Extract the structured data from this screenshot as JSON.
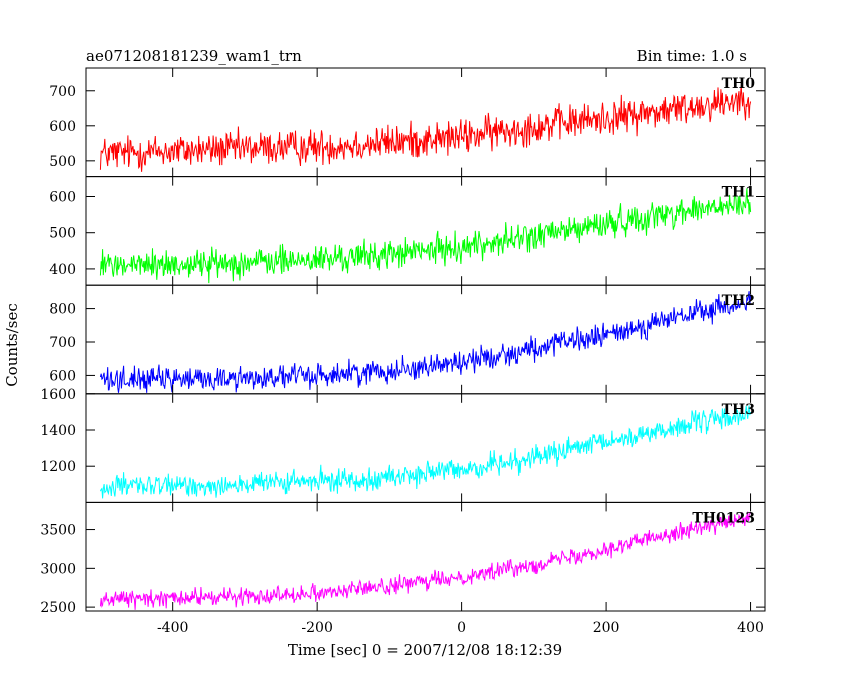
{
  "header": {
    "title": "ae071208181239_wam1_trn",
    "bin_time": "Bin time: 1.0 s"
  },
  "axes": {
    "xlabel": "Time [sec] 0 = 2007/12/08 18:12:39",
    "ylabel": "Counts/sec"
  },
  "chart_data": {
    "type": "line",
    "title": "ae071208181239_wam1_trn",
    "subtitle": "Bin time: 1.0 s",
    "xlabel": "Time [sec] 0 = 2007/12/08 18:12:39",
    "ylabel": "Counts/sec",
    "xlim": [
      -520,
      420
    ],
    "x_ticks": [
      -400,
      -200,
      0,
      200,
      400
    ],
    "x_range_data": [
      -500,
      400
    ],
    "bin_time_s": 1.0,
    "grid": false,
    "legend": "none",
    "panels": [
      {
        "name": "TH0",
        "color": "#ff0000",
        "ylim": [
          455,
          765
        ],
        "y_ticks": [
          500,
          600,
          700
        ],
        "trend_x": [
          -500,
          -400,
          -300,
          -200,
          -100,
          0,
          100,
          200,
          300,
          400
        ],
        "trend_y": [
          520,
          528,
          535,
          540,
          552,
          568,
          598,
          622,
          648,
          682
        ],
        "noise_amplitude": 55
      },
      {
        "name": "TH1",
        "color": "#00ff00",
        "ylim": [
          355,
          655
        ],
        "y_ticks": [
          400,
          500,
          600
        ],
        "trend_x": [
          -500,
          -400,
          -300,
          -200,
          -100,
          0,
          100,
          200,
          300,
          400
        ],
        "trend_y": [
          410,
          412,
          418,
          425,
          440,
          460,
          490,
          525,
          558,
          578
        ],
        "noise_amplitude": 45
      },
      {
        "name": "TH2",
        "color": "#0000ff",
        "ylim": [
          545,
          870
        ],
        "y_ticks": [
          600,
          700,
          800
        ],
        "trend_x": [
          -500,
          -400,
          -300,
          -200,
          -100,
          0,
          100,
          200,
          300,
          400
        ],
        "trend_y": [
          590,
          588,
          592,
          600,
          615,
          640,
          680,
          720,
          775,
          820
        ],
        "noise_amplitude": 40
      },
      {
        "name": "TH3",
        "color": "#00ffff",
        "ylim": [
          1000,
          1600
        ],
        "y_ticks": [
          1200,
          1400,
          1600
        ],
        "trend_x": [
          -500,
          -400,
          -300,
          -200,
          -100,
          0,
          100,
          200,
          300,
          400
        ],
        "trend_y": [
          1085,
          1090,
          1100,
          1115,
          1140,
          1180,
          1250,
          1330,
          1420,
          1490
        ],
        "noise_amplitude": 70
      },
      {
        "name": "TH0123",
        "color": "#ff00ff",
        "ylim": [
          2450,
          3850
        ],
        "y_ticks": [
          2500,
          3000,
          3500
        ],
        "trend_x": [
          -500,
          -400,
          -300,
          -200,
          -100,
          0,
          100,
          200,
          300,
          400
        ],
        "trend_y": [
          2600,
          2615,
          2640,
          2690,
          2770,
          2890,
          3050,
          3250,
          3480,
          3640
        ],
        "noise_amplitude": 120
      }
    ]
  }
}
